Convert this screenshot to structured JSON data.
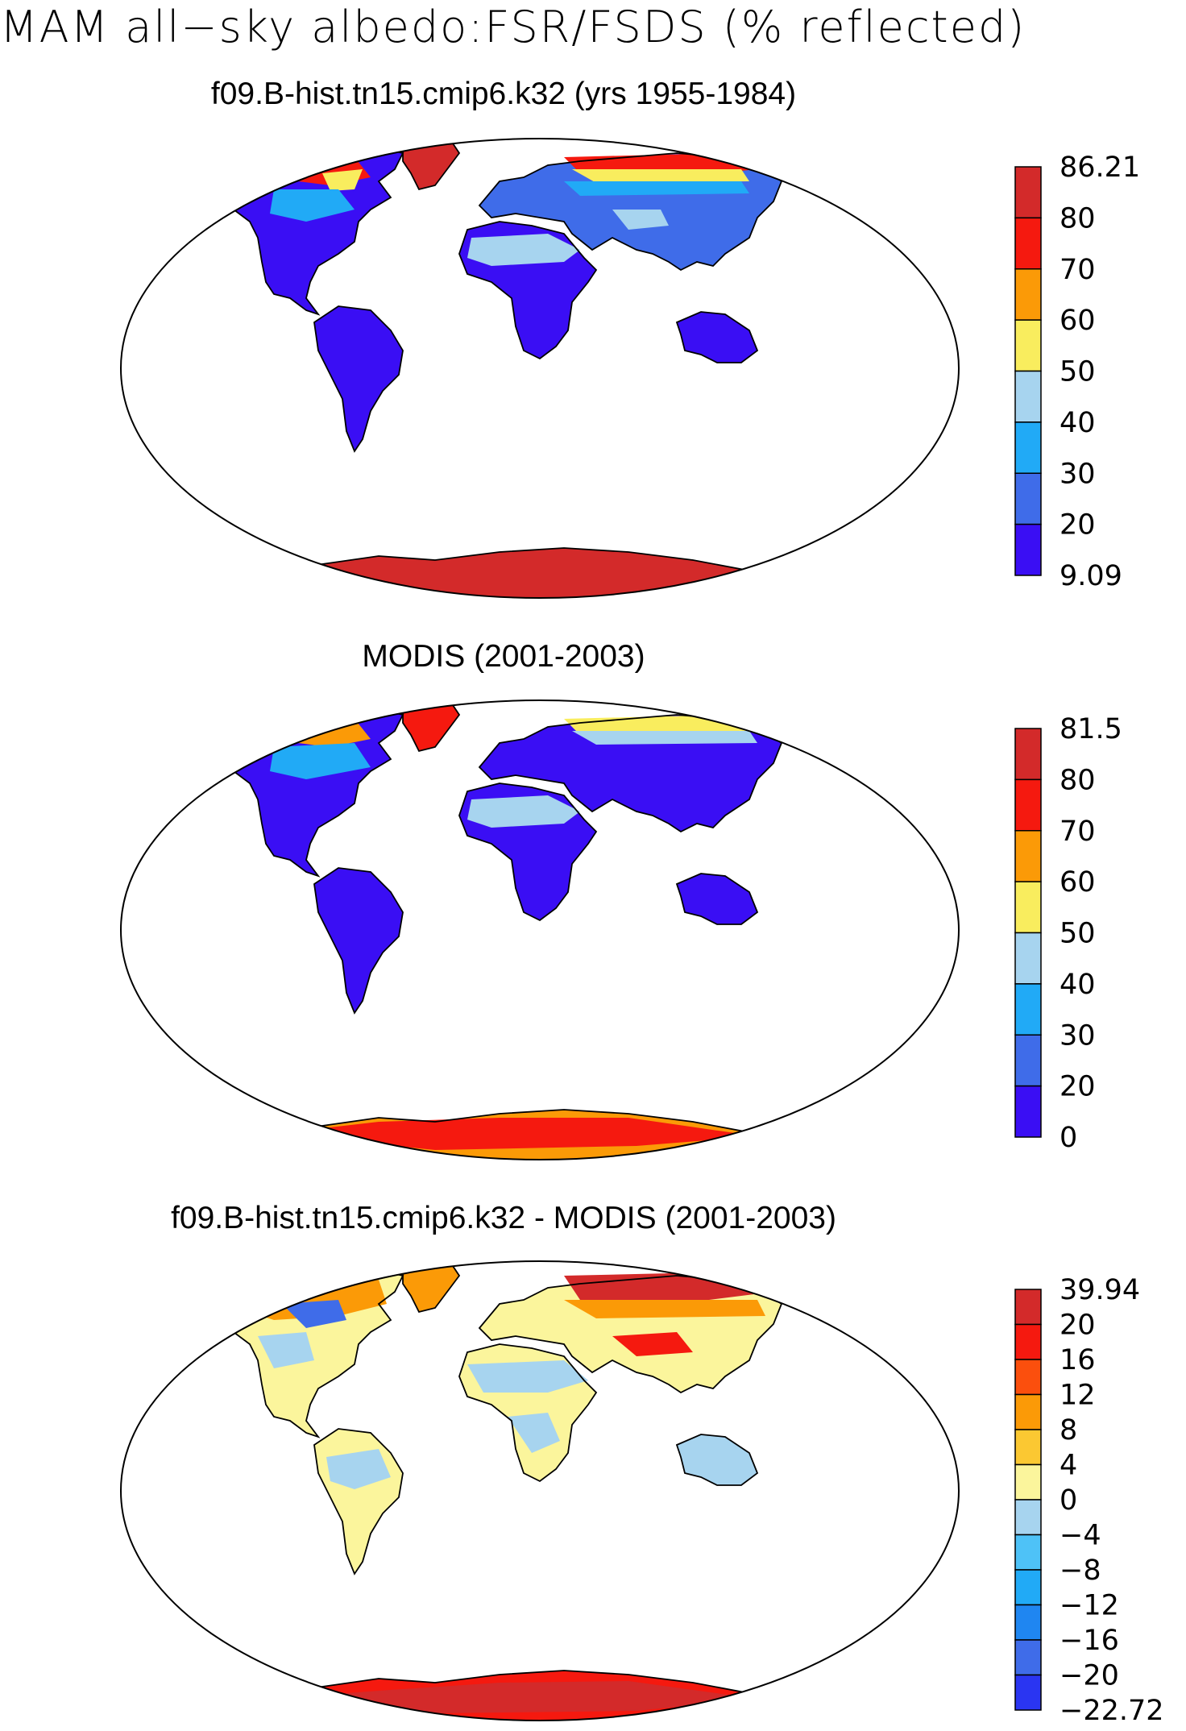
{
  "figure": {
    "title": "MAM all−sky albedo:FSR/FSDS (% reflected)"
  },
  "panels": [
    {
      "title": "f09.B-hist.tn15.cmip6.k32 (yrs 1955-1984)",
      "colorbar": {
        "labels": [
          "86.21",
          "80",
          "70",
          "60",
          "50",
          "40",
          "30",
          "20",
          "9.09"
        ],
        "colors": [
          "#d32a2a",
          "#f5190f",
          "#fb9a07",
          "#f9ed5e",
          "#a7d4ef",
          "#21aaf6",
          "#3f6ce9",
          "#3a0ef4"
        ]
      }
    },
    {
      "title": "MODIS (2001-2003)",
      "colorbar": {
        "labels": [
          "81.5",
          "80",
          "70",
          "60",
          "50",
          "40",
          "30",
          "20",
          "0"
        ],
        "colors": [
          "#d32a2a",
          "#f5190f",
          "#fb9a07",
          "#f9ed5e",
          "#a7d4ef",
          "#21aaf6",
          "#3f6ce9",
          "#3a0ef4"
        ]
      }
    },
    {
      "title": "f09.B-hist.tn15.cmip6.k32 - MODIS (2001-2003)",
      "colorbar": {
        "labels": [
          "39.94",
          "20",
          "16",
          "12",
          "8",
          "4",
          "0",
          "−4",
          "−8",
          "−12",
          "−16",
          "−20",
          "−22.72"
        ],
        "colors": [
          "#d32a2a",
          "#f5190f",
          "#fb4f0d",
          "#fb9a07",
          "#fbc832",
          "#fbf59c",
          "#a7d4ef",
          "#4ec2f7",
          "#21aaf6",
          "#1f86f1",
          "#3f6ce9",
          "#2a35f2"
        ]
      }
    }
  ]
}
